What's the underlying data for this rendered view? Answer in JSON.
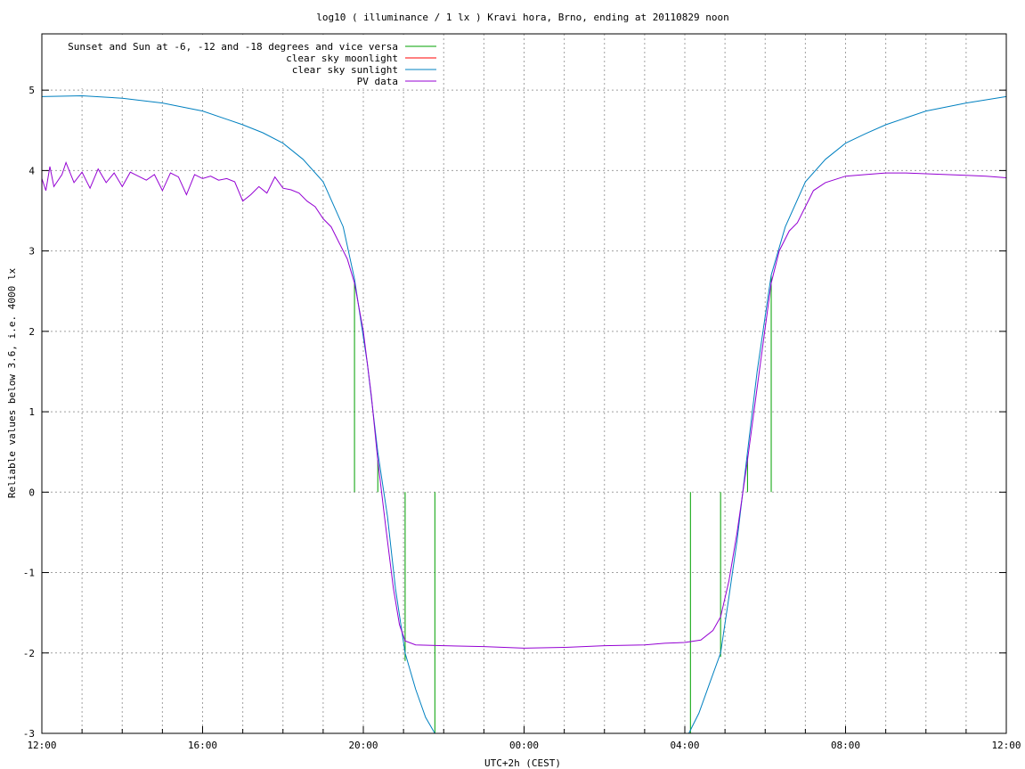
{
  "chart_data": {
    "type": "line",
    "title": "log10 ( illuminance / 1 lx ) Kravi hora, Brno, ending at 20110829 noon",
    "xlabel": "UTC+2h (CEST)",
    "ylabel": "Reliable values below 3.6, i.e. 4000 lx",
    "xlim": [
      12,
      36
    ],
    "ylim": [
      -3,
      5.7
    ],
    "x_ticks": [
      {
        "v": 12,
        "label": "12:00"
      },
      {
        "v": 16,
        "label": "16:00"
      },
      {
        "v": 20,
        "label": "20:00"
      },
      {
        "v": 24,
        "label": "00:00"
      },
      {
        "v": 28,
        "label": "04:00"
      },
      {
        "v": 32,
        "label": "08:00"
      },
      {
        "v": 36,
        "label": "12:00"
      }
    ],
    "y_ticks": [
      {
        "v": -3,
        "label": "-3"
      },
      {
        "v": -2,
        "label": "-2"
      },
      {
        "v": -1,
        "label": "-1"
      },
      {
        "v": 0,
        "label": "0"
      },
      {
        "v": 1,
        "label": "1"
      },
      {
        "v": 2,
        "label": "2"
      },
      {
        "v": 3,
        "label": "3"
      },
      {
        "v": 4,
        "label": "4"
      },
      {
        "v": 5,
        "label": "5"
      }
    ],
    "grid": true,
    "legend_position": "top-left",
    "series": [
      {
        "name": "Sunset and Sun at -6, -12 and -18 degrees and vice versa",
        "color": "#00a000",
        "style": "vertical-markers",
        "markers": [
          {
            "x": 19.78,
            "y_from": 0,
            "y_to": 2.6
          },
          {
            "x": 20.36,
            "y_from": 0,
            "y_to": 0.4
          },
          {
            "x": 21.04,
            "y_from": -2.1,
            "y_to": 0
          },
          {
            "x": 21.78,
            "y_from": -3,
            "y_to": 0
          },
          {
            "x": 28.14,
            "y_from": -3,
            "y_to": 0
          },
          {
            "x": 28.89,
            "y_from": -2.05,
            "y_to": 0
          },
          {
            "x": 29.56,
            "y_from": 0,
            "y_to": 0.45
          },
          {
            "x": 30.15,
            "y_from": 0,
            "y_to": 2.7
          }
        ]
      },
      {
        "name": "clear sky moonlight",
        "color": "#ff0000",
        "points": []
      },
      {
        "name": "clear sky sunlight",
        "color": "#0080c0",
        "points": [
          [
            12,
            4.92
          ],
          [
            13,
            4.93
          ],
          [
            14,
            4.9
          ],
          [
            15,
            4.84
          ],
          [
            16,
            4.74
          ],
          [
            17,
            4.57
          ],
          [
            17.5,
            4.47
          ],
          [
            18,
            4.34
          ],
          [
            18.5,
            4.14
          ],
          [
            19,
            3.86
          ],
          [
            19.5,
            3.3
          ],
          [
            19.78,
            2.65
          ],
          [
            20.1,
            1.6
          ],
          [
            20.36,
            0.5
          ],
          [
            20.6,
            -0.3
          ],
          [
            20.8,
            -1.2
          ],
          [
            21.04,
            -2.0
          ],
          [
            21.3,
            -2.45
          ],
          [
            21.55,
            -2.8
          ],
          [
            21.78,
            -3.05
          ],
          [
            28.1,
            -3.05
          ],
          [
            28.35,
            -2.75
          ],
          [
            28.6,
            -2.4
          ],
          [
            28.89,
            -2.0
          ],
          [
            29.1,
            -1.3
          ],
          [
            29.3,
            -0.6
          ],
          [
            29.56,
            0.5
          ],
          [
            29.8,
            1.5
          ],
          [
            30.15,
            2.7
          ],
          [
            30.5,
            3.3
          ],
          [
            31,
            3.86
          ],
          [
            31.5,
            4.14
          ],
          [
            32,
            4.34
          ],
          [
            32.5,
            4.46
          ],
          [
            33,
            4.57
          ],
          [
            34,
            4.74
          ],
          [
            35,
            4.84
          ],
          [
            36,
            4.92
          ]
        ]
      },
      {
        "name": "PV data",
        "color": "#9400d3",
        "points": [
          [
            12,
            3.9
          ],
          [
            12.1,
            3.75
          ],
          [
            12.2,
            4.05
          ],
          [
            12.3,
            3.8
          ],
          [
            12.5,
            3.95
          ],
          [
            12.6,
            4.1
          ],
          [
            12.8,
            3.85
          ],
          [
            13,
            3.98
          ],
          [
            13.2,
            3.78
          ],
          [
            13.4,
            4.02
          ],
          [
            13.6,
            3.85
          ],
          [
            13.8,
            3.97
          ],
          [
            14,
            3.8
          ],
          [
            14.2,
            3.98
          ],
          [
            14.4,
            3.93
          ],
          [
            14.6,
            3.88
          ],
          [
            14.8,
            3.95
          ],
          [
            15,
            3.75
          ],
          [
            15.2,
            3.97
          ],
          [
            15.4,
            3.92
          ],
          [
            15.6,
            3.7
          ],
          [
            15.8,
            3.95
          ],
          [
            16,
            3.9
          ],
          [
            16.2,
            3.93
          ],
          [
            16.4,
            3.88
          ],
          [
            16.6,
            3.9
          ],
          [
            16.8,
            3.86
          ],
          [
            17,
            3.62
          ],
          [
            17.2,
            3.7
          ],
          [
            17.4,
            3.8
          ],
          [
            17.6,
            3.72
          ],
          [
            17.8,
            3.92
          ],
          [
            18,
            3.78
          ],
          [
            18.2,
            3.76
          ],
          [
            18.4,
            3.72
          ],
          [
            18.6,
            3.62
          ],
          [
            18.8,
            3.55
          ],
          [
            19,
            3.4
          ],
          [
            19.2,
            3.3
          ],
          [
            19.4,
            3.1
          ],
          [
            19.6,
            2.9
          ],
          [
            19.78,
            2.6
          ],
          [
            20,
            2.0
          ],
          [
            20.2,
            1.2
          ],
          [
            20.36,
            0.4
          ],
          [
            20.55,
            -0.4
          ],
          [
            20.75,
            -1.2
          ],
          [
            20.9,
            -1.65
          ],
          [
            21.04,
            -1.85
          ],
          [
            21.3,
            -1.9
          ],
          [
            22,
            -1.91
          ],
          [
            23,
            -1.92
          ],
          [
            24,
            -1.94
          ],
          [
            25,
            -1.93
          ],
          [
            26,
            -1.91
          ],
          [
            27,
            -1.9
          ],
          [
            27.5,
            -1.88
          ],
          [
            28,
            -1.87
          ],
          [
            28.4,
            -1.84
          ],
          [
            28.7,
            -1.72
          ],
          [
            28.89,
            -1.55
          ],
          [
            29.1,
            -1.1
          ],
          [
            29.3,
            -0.5
          ],
          [
            29.56,
            0.4
          ],
          [
            29.8,
            1.3
          ],
          [
            30.15,
            2.6
          ],
          [
            30.35,
            3.0
          ],
          [
            30.6,
            3.25
          ],
          [
            30.8,
            3.35
          ],
          [
            31,
            3.55
          ],
          [
            31.2,
            3.75
          ],
          [
            31.5,
            3.85
          ],
          [
            32,
            3.93
          ],
          [
            32.5,
            3.95
          ],
          [
            33,
            3.97
          ],
          [
            33.5,
            3.97
          ],
          [
            34,
            3.96
          ],
          [
            34.5,
            3.95
          ],
          [
            35,
            3.94
          ],
          [
            35.5,
            3.93
          ],
          [
            36,
            3.91
          ]
        ]
      }
    ]
  }
}
